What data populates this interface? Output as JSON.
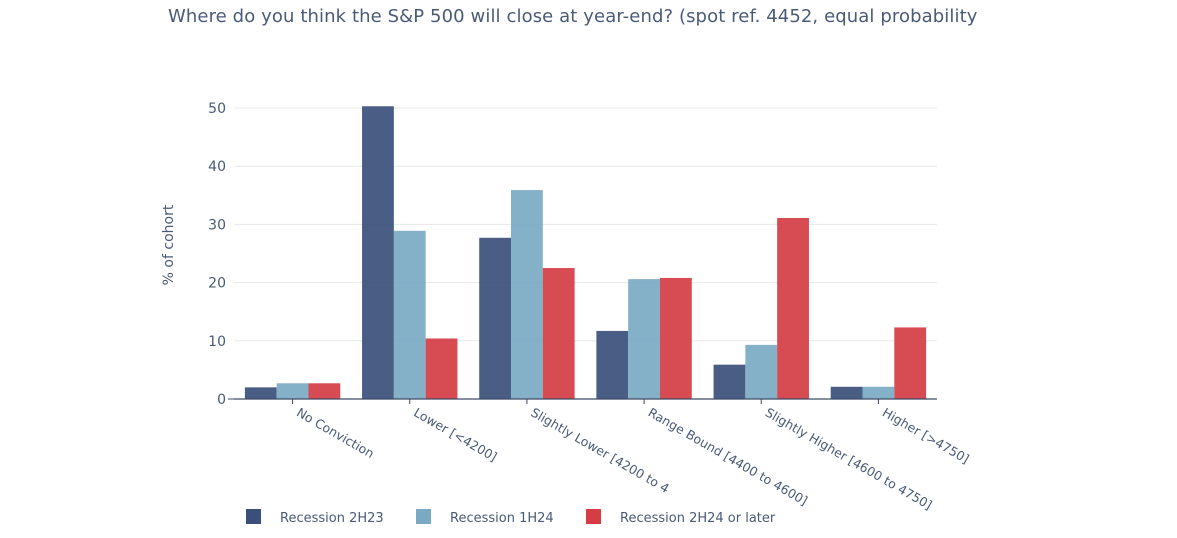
{
  "chart_data": {
    "type": "bar",
    "title": "Where do you think the S&P 500 will close at year-end? (spot ref. 4452, equal probability",
    "ylabel": "% of cohort",
    "xlabel": "",
    "ylim": [
      0,
      50
    ],
    "yticks": [
      0,
      10,
      20,
      30,
      40,
      50
    ],
    "categories": [
      "No Conviction",
      "Lower [<4200]",
      "Slightly Lower [4200 to 4",
      "Range Bound [4400 to 4600]",
      "Slightly Higher [4600 to 4750]",
      "Higher [>4750]"
    ],
    "series": [
      {
        "name": "Recession 2H23",
        "color": "#3b4f7a",
        "values": [
          2,
          50.3,
          27.7,
          11.7,
          5.9,
          2.1
        ]
      },
      {
        "name": "Recession 1H24",
        "color": "#7aa9c3",
        "values": [
          2.7,
          28.9,
          35.9,
          20.6,
          9.3,
          2.1
        ]
      },
      {
        "name": "Recession 2H24 or later",
        "color": "#d43d43",
        "values": [
          2.7,
          10.4,
          22.5,
          20.8,
          31.1,
          12.3
        ]
      }
    ],
    "grid": true,
    "legend": "bottom"
  }
}
